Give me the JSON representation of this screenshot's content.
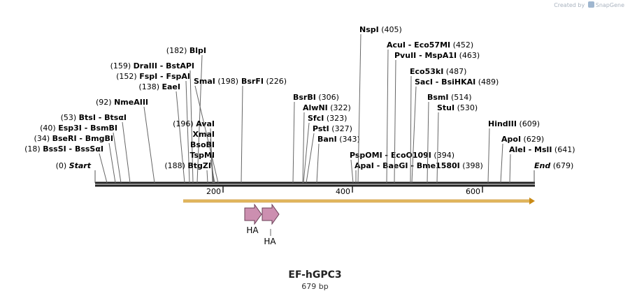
{
  "app": {
    "credit": "Created by",
    "brand": "SnapGene"
  },
  "map": {
    "name": "EF-hGPC3",
    "length_label": "679 bp",
    "start_label": "Start",
    "start_pos": "(0)",
    "end_label": "End",
    "end_pos": "(679)",
    "ruler_ticks": [
      "200",
      "400",
      "600"
    ]
  },
  "features": [
    {
      "label": "HA"
    },
    {
      "label": "HA"
    }
  ],
  "sites": [
    {
      "pos": "(18)",
      "names": [
        "BssSI",
        "BssSαI"
      ]
    },
    {
      "pos": "(34)",
      "names": [
        "BseRI",
        "BmgBI"
      ]
    },
    {
      "pos": "(40)",
      "names": [
        "Esp3I",
        "BsmBI"
      ]
    },
    {
      "pos": "(53)",
      "names": [
        "BtsI",
        "BtsαI"
      ]
    },
    {
      "pos": "(92)",
      "names": [
        "NmeAIII"
      ]
    },
    {
      "pos": "(138)",
      "names": [
        "EaeI"
      ]
    },
    {
      "pos": "(152)",
      "names": [
        "FspI",
        "FspAI"
      ]
    },
    {
      "pos": "(159)",
      "names": [
        "DraIII",
        "BstAPI"
      ]
    },
    {
      "pos": "(182)",
      "names": [
        "BlpI"
      ]
    },
    {
      "pos": "(188)",
      "names": [
        "BtgZI"
      ]
    },
    {
      "pos": "(196)",
      "names": [
        "AvaI"
      ]
    },
    {
      "pos": "",
      "names": [
        "XmaI"
      ]
    },
    {
      "pos": "",
      "names": [
        "BsoBI"
      ]
    },
    {
      "pos": "",
      "names": [
        "TspMI"
      ]
    },
    {
      "pos": "(198)",
      "names": [
        "SmaI"
      ]
    },
    {
      "pos": "(226)",
      "names": [
        "BsrFI"
      ]
    },
    {
      "pos": "(306)",
      "names": [
        "BsrBI"
      ]
    },
    {
      "pos": "(322)",
      "names": [
        "AlwNI"
      ]
    },
    {
      "pos": "(323)",
      "names": [
        "SfcI"
      ]
    },
    {
      "pos": "(327)",
      "names": [
        "PstI"
      ]
    },
    {
      "pos": "(343)",
      "names": [
        "BanI"
      ]
    },
    {
      "pos": "(394)",
      "names": [
        "PspOMI",
        "EcoO109I"
      ]
    },
    {
      "pos": "(398)",
      "names": [
        "ApaI",
        "BaeGI",
        "Bme1580I"
      ]
    },
    {
      "pos": "(405)",
      "names": [
        "NspI"
      ]
    },
    {
      "pos": "(452)",
      "names": [
        "AcuI",
        "Eco57MI"
      ]
    },
    {
      "pos": "(463)",
      "names": [
        "PvuII",
        "MspA1I"
      ]
    },
    {
      "pos": "(487)",
      "names": [
        "Eco53kI"
      ]
    },
    {
      "pos": "(489)",
      "names": [
        "SacI",
        "BsiHKAI"
      ]
    },
    {
      "pos": "(514)",
      "names": [
        "BsmI"
      ]
    },
    {
      "pos": "(530)",
      "names": [
        "StuI"
      ]
    },
    {
      "pos": "(609)",
      "names": [
        "HindIII"
      ]
    },
    {
      "pos": "(629)",
      "names": [
        "ApoI"
      ]
    },
    {
      "pos": "(641)",
      "names": [
        "AleI",
        "MslI"
      ]
    }
  ]
}
